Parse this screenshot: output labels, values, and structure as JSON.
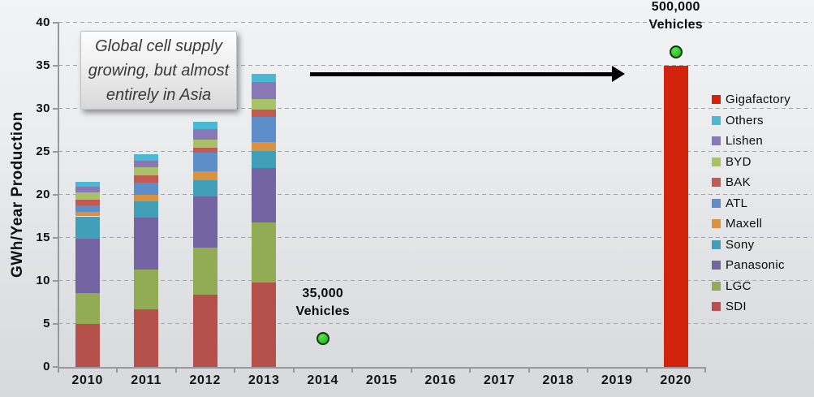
{
  "chart_data": {
    "type": "bar",
    "stacked": true,
    "title": "",
    "xlabel": "",
    "ylabel": "GWh/Year Production",
    "ylim": [
      0,
      40
    ],
    "yticks": [
      0,
      5,
      10,
      15,
      20,
      25,
      30,
      35,
      40
    ],
    "grid": "horizontal-dashed",
    "legend_position": "right",
    "categories": [
      "2010",
      "2011",
      "2012",
      "2013",
      "2014",
      "2015",
      "2016",
      "2017",
      "2018",
      "2019",
      "2020"
    ],
    "series": [
      {
        "name": "SDI",
        "color": "#b5504b",
        "values": [
          5.0,
          6.7,
          8.4,
          9.8,
          0,
          0,
          0,
          0,
          0,
          0,
          0
        ]
      },
      {
        "name": "LGC",
        "color": "#92ab55",
        "values": [
          3.6,
          4.6,
          5.5,
          7.0,
          0,
          0,
          0,
          0,
          0,
          0,
          0
        ]
      },
      {
        "name": "Panasonic",
        "color": "#7464a1",
        "values": [
          6.3,
          6.1,
          5.9,
          6.3,
          0,
          0,
          0,
          0,
          0,
          0,
          0
        ]
      },
      {
        "name": "Sony",
        "color": "#41a0b7",
        "values": [
          2.6,
          1.8,
          1.9,
          2.0,
          0,
          0,
          0,
          0,
          0,
          0,
          0
        ]
      },
      {
        "name": "Maxell",
        "color": "#d9923f",
        "values": [
          0.5,
          0.8,
          1.0,
          1.0,
          0,
          0,
          0,
          0,
          0,
          0,
          0
        ]
      },
      {
        "name": "ATL",
        "color": "#5d8ec9",
        "values": [
          0.8,
          1.4,
          2.2,
          3.0,
          0,
          0,
          0,
          0,
          0,
          0,
          0
        ]
      },
      {
        "name": "BAK",
        "color": "#c25a54",
        "values": [
          0.6,
          0.9,
          0.6,
          0.8,
          0,
          0,
          0,
          0,
          0,
          0,
          0
        ]
      },
      {
        "name": "BYD",
        "color": "#a9c169",
        "values": [
          0.9,
          0.9,
          0.9,
          1.2,
          0,
          0,
          0,
          0,
          0,
          0,
          0
        ]
      },
      {
        "name": "Lishen",
        "color": "#8878b6",
        "values": [
          0.6,
          0.8,
          1.2,
          2.0,
          0,
          0,
          0,
          0,
          0,
          0,
          0
        ]
      },
      {
        "name": "Others",
        "color": "#4cb9d2",
        "values": [
          0.6,
          0.7,
          0.9,
          1.0,
          0,
          0,
          0,
          0,
          0,
          0,
          0
        ]
      },
      {
        "name": "Gigafactory",
        "color": "#d2230c",
        "values": [
          0,
          0,
          0,
          0,
          0,
          0,
          0,
          0,
          0,
          0,
          35
        ]
      }
    ],
    "legend_order": [
      "Gigafactory",
      "Others",
      "Lishen",
      "BYD",
      "BAK",
      "ATL",
      "Maxell",
      "Sony",
      "Panasonic",
      "LGC",
      "SDI"
    ],
    "annotations": {
      "callout": {
        "lines": [
          "Global cell supply",
          "growing, but almost",
          "entirely in Asia"
        ]
      },
      "arrow": {
        "from_category": "2014",
        "to_category": "2019",
        "y_value": 34
      },
      "markers": [
        {
          "category": "2014",
          "y_value": 3.3,
          "label_lines": [
            "35,000",
            "Vehicles"
          ]
        },
        {
          "category": "2020",
          "y_value": 36.6,
          "label_lines": [
            "500,000",
            "Vehicles"
          ]
        }
      ]
    },
    "marker_color": "#2fce27"
  }
}
